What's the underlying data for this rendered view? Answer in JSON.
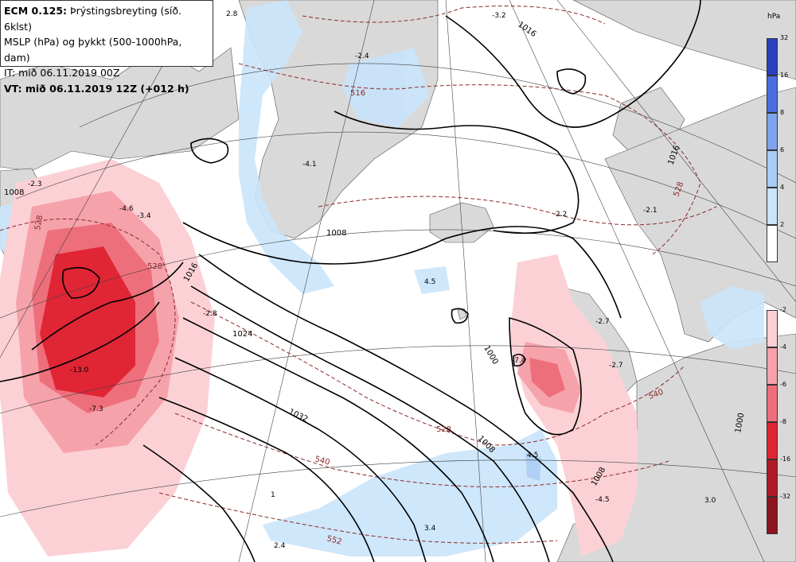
{
  "info": {
    "line1_model": "ECM 0.125:",
    "line1_field": "Þrýstingsbreyting (síð. 6klst)",
    "line2": "MSLP (hPa) og þykkt (500-1000hPa, dam)",
    "line3": "IT: mið 06.11.2019 00Z",
    "line4": "VT: mið 06.11.2019 12Z (+012 h)"
  },
  "legend": {
    "unit": "hPa",
    "rise": [
      {
        "label": "32",
        "color": "#2b3fbf"
      },
      {
        "label": "16",
        "color": "#4a6ee0"
      },
      {
        "label": "8",
        "color": "#7ea4ee"
      },
      {
        "label": "6",
        "color": "#a9ccf4"
      },
      {
        "label": "4",
        "color": "#c9e4fb"
      },
      {
        "label": "2",
        "color": "#ffffff"
      }
    ],
    "fall": [
      {
        "label": "-2",
        "color": "#fbd1d6"
      },
      {
        "label": "-4",
        "color": "#f6a2ab"
      },
      {
        "label": "-6",
        "color": "#ee6f7c"
      },
      {
        "label": "-8",
        "color": "#e02535"
      },
      {
        "label": "-16",
        "color": "#b01a26"
      },
      {
        "label": "-32",
        "color": "#8c1520"
      }
    ]
  },
  "map_labels": {
    "isobars": [
      "1016",
      "1024",
      "1032",
      "1016",
      "1008",
      "1000",
      "1008",
      "1008",
      "1016",
      "1000",
      "1008"
    ],
    "thickness": [
      "516",
      "528",
      "528",
      "540",
      "552",
      "528",
      "540",
      "528"
    ],
    "tendency": [
      "2.8",
      "-2.4",
      "-3.2",
      "-2.3",
      "-3.4",
      "-4.1",
      "-4.6",
      "-2.8",
      "-13.0",
      "-7.3",
      "4.5",
      "2.2",
      "-2.1",
      "-2.7",
      "-2.7",
      "-7.4",
      "4.5",
      "-4.5",
      "3.4",
      "2.4",
      "3.0",
      "1"
    ]
  },
  "colors": {
    "land": "#d9d9d9",
    "sea": "#ffffff",
    "isobar": "#000000",
    "thickness": "#8b2a2a"
  }
}
